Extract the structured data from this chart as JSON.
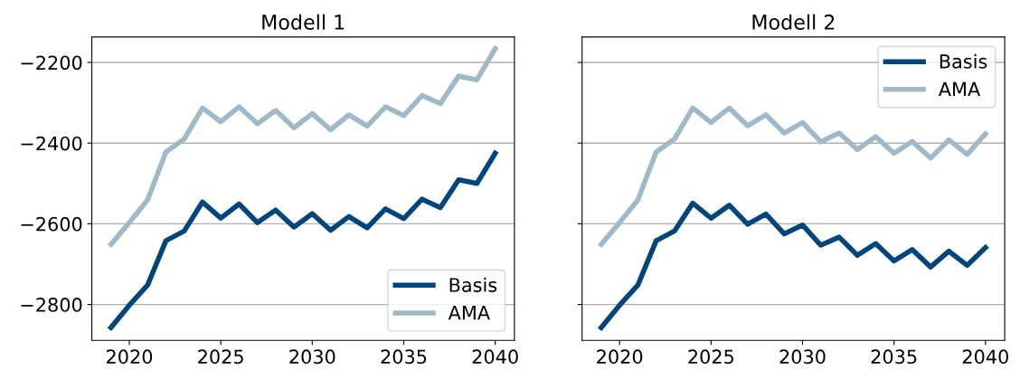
{
  "chart_data": [
    {
      "type": "line",
      "title": "Modell 1",
      "x": [
        2019,
        2020,
        2021,
        2022,
        2023,
        2024,
        2025,
        2026,
        2027,
        2028,
        2029,
        2030,
        2031,
        2032,
        2033,
        2034,
        2035,
        2036,
        2037,
        2038,
        2039,
        2040
      ],
      "series": [
        {
          "name": "Basis",
          "color": "#00457c",
          "values": [
            -2857,
            -2802,
            -2752,
            -2642,
            -2618,
            -2546,
            -2586,
            -2551,
            -2597,
            -2566,
            -2608,
            -2575,
            -2616,
            -2582,
            -2610,
            -2563,
            -2587,
            -2539,
            -2560,
            -2491,
            -2500,
            -2425
          ]
        },
        {
          "name": "AMA",
          "color": "#9fb9c9",
          "values": [
            -2651,
            -2597,
            -2541,
            -2422,
            -2390,
            -2313,
            -2347,
            -2310,
            -2352,
            -2319,
            -2362,
            -2327,
            -2367,
            -2330,
            -2358,
            -2310,
            -2332,
            -2282,
            -2302,
            -2234,
            -2243,
            -2166
          ]
        }
      ],
      "xlim": [
        2017.95,
        2041.05
      ],
      "xticks": [
        2020,
        2025,
        2030,
        2035,
        2040
      ],
      "ylim": [
        -2889,
        -2137
      ],
      "yticks": [
        {
          "value": -2800,
          "label": "−2800"
        },
        {
          "value": -2600,
          "label": "−2600"
        },
        {
          "value": -2400,
          "label": "−2400"
        },
        {
          "value": -2200,
          "label": "−2200"
        }
      ],
      "grid": "y",
      "legend": "bottom right"
    },
    {
      "type": "line",
      "title": "Modell 2",
      "x": [
        2019,
        2020,
        2021,
        2022,
        2023,
        2024,
        2025,
        2026,
        2027,
        2028,
        2029,
        2030,
        2031,
        2032,
        2033,
        2034,
        2035,
        2036,
        2037,
        2038,
        2039,
        2040
      ],
      "series": [
        {
          "name": "Basis",
          "color": "#00457c",
          "values": [
            -2857,
            -2802,
            -2752,
            -2642,
            -2618,
            -2549,
            -2586,
            -2554,
            -2601,
            -2576,
            -2625,
            -2603,
            -2653,
            -2633,
            -2678,
            -2649,
            -2692,
            -2664,
            -2707,
            -2668,
            -2703,
            -2659
          ]
        },
        {
          "name": "AMA",
          "color": "#9fb9c9",
          "values": [
            -2651,
            -2597,
            -2541,
            -2422,
            -2390,
            -2313,
            -2349,
            -2313,
            -2357,
            -2330,
            -2375,
            -2349,
            -2397,
            -2375,
            -2416,
            -2384,
            -2425,
            -2396,
            -2437,
            -2392,
            -2428,
            -2377
          ]
        }
      ],
      "xlim": [
        2017.95,
        2041.05
      ],
      "xticks": [
        2020,
        2025,
        2030,
        2035,
        2040
      ],
      "ylim": [
        -2889,
        -2137
      ],
      "yticks": [
        -2800,
        -2600,
        -2400,
        -2200
      ],
      "grid": "y",
      "legend": "top right",
      "tick_labels": "x"
    }
  ]
}
